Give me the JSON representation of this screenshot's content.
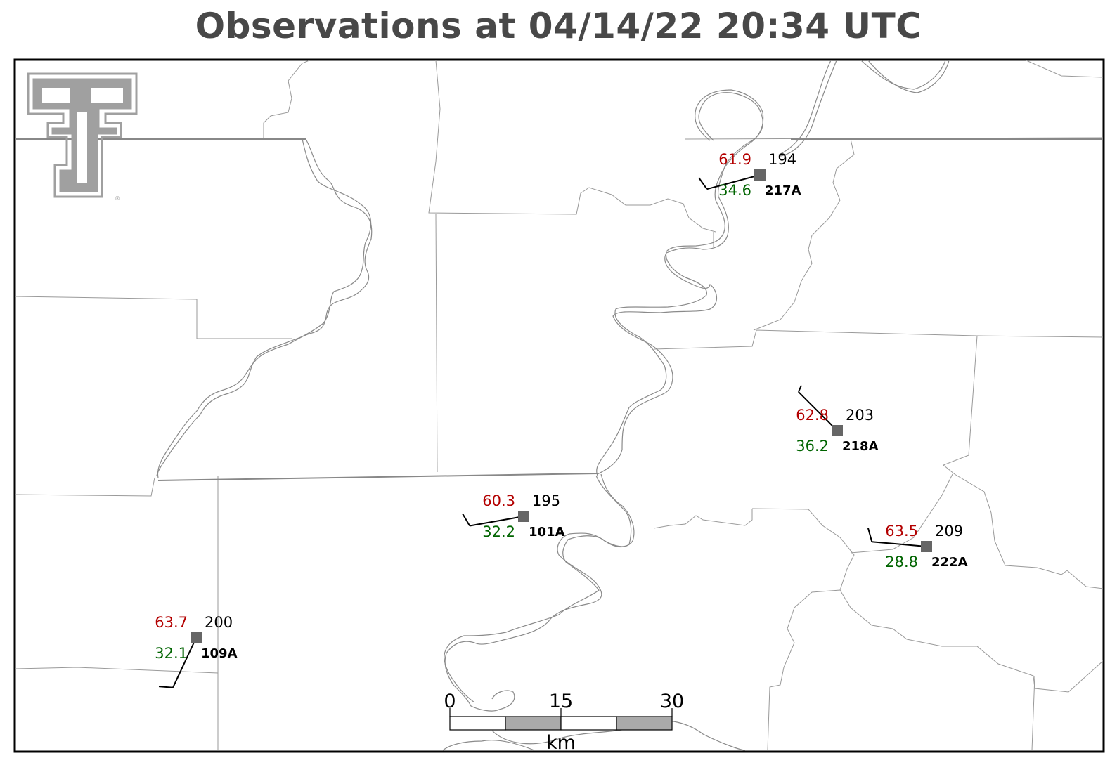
{
  "title": "Observations at 04/14/22 20:34 UTC",
  "logo": {
    "icon": "double-t-logo-icon",
    "color": "#a0a0a0"
  },
  "colors": {
    "temperature": "#b30000",
    "dewpoint": "#006400",
    "station_marker": "#666666"
  },
  "stations": [
    {
      "id": "217A",
      "temp": "61.9",
      "dewpoint": "34.6",
      "pressure": "194",
      "wind_dir_deg": 255,
      "barbs": [
        1
      ]
    },
    {
      "id": "218A",
      "temp": "62.8",
      "dewpoint": "36.2",
      "pressure": "203",
      "wind_dir_deg": 315,
      "barbs": [
        0.5
      ]
    },
    {
      "id": "101A",
      "temp": "60.3",
      "dewpoint": "32.2",
      "pressure": "195",
      "wind_dir_deg": 260,
      "barbs": [
        1
      ]
    },
    {
      "id": "222A",
      "temp": "63.5",
      "dewpoint": "28.8",
      "pressure": "209",
      "wind_dir_deg": 275,
      "barbs": [
        1
      ]
    },
    {
      "id": "109A",
      "temp": "63.7",
      "dewpoint": "32.1",
      "pressure": "200",
      "wind_dir_deg": 205,
      "barbs": [
        1
      ]
    }
  ],
  "scale_bar": {
    "labels": [
      "0",
      "15",
      "30"
    ],
    "unit": "km"
  }
}
